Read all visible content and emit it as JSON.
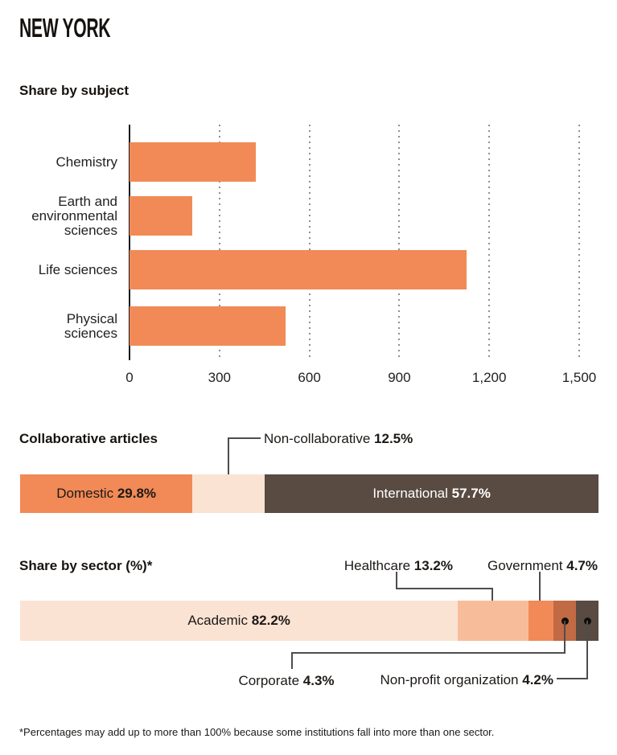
{
  "page": {
    "title": "NEW YORK",
    "footnote": "*Percentages may add up to more than 100% because some institutions fall into more than one sector."
  },
  "colors": {
    "orange": "#F18A56",
    "light_peach": "#FBE3D4",
    "dark_brown": "#594A42",
    "salmon": "#F7BD9B",
    "rust": "#C16A44",
    "callout_line": "#4d4d4d",
    "gridline": "#8f8f8f"
  },
  "chart_data": [
    {
      "type": "bar",
      "title": "Share by subject",
      "orientation": "horizontal",
      "categories": [
        "Chemistry",
        "Earth and environmental sciences",
        "Life sciences",
        "Physical sciences"
      ],
      "values": [
        420,
        210,
        1125,
        520
      ],
      "xlim": [
        0,
        1500
      ],
      "xticks": [
        0,
        300,
        600,
        900,
        1200,
        1500
      ],
      "xtick_labels": [
        "0",
        "300",
        "600",
        "900",
        "1,200",
        "1,500"
      ],
      "grid": "dotted-vertical",
      "bar_color": "#F18A56"
    },
    {
      "type": "stacked-bar",
      "title": "Collaborative articles",
      "unit": "%",
      "segments": [
        {
          "label": "Domestic",
          "value": 29.8,
          "display": "29.8%",
          "color": "#F18A56",
          "text_color": "#1c1916",
          "label_position": "inside"
        },
        {
          "label": "Non-collaborative",
          "value": 12.5,
          "display": "12.5%",
          "color": "#FBE3D4",
          "label_position": "callout-top"
        },
        {
          "label": "International",
          "value": 57.7,
          "display": "57.7%",
          "color": "#594A42",
          "text_color": "#ffffff",
          "label_position": "inside"
        }
      ]
    },
    {
      "type": "stacked-bar",
      "title": "Share by sector (%)*",
      "unit": "%",
      "segments": [
        {
          "label": "Academic",
          "value": 82.2,
          "display": "82.2%",
          "color": "#FBE3D4",
          "text_color": "#1c1916",
          "label_position": "inside"
        },
        {
          "label": "Healthcare",
          "value": 13.2,
          "display": "13.2%",
          "color": "#F7BD9B",
          "label_position": "callout-top"
        },
        {
          "label": "Government",
          "value": 4.7,
          "display": "4.7%",
          "color": "#F18A56",
          "label_position": "callout-top"
        },
        {
          "label": "Corporate",
          "value": 4.3,
          "display": "4.3%",
          "color": "#C16A44",
          "label_position": "callout-bottom"
        },
        {
          "label": "Non-profit organization",
          "value": 4.2,
          "display": "4.2%",
          "color": "#594A42",
          "label_position": "callout-bottom"
        }
      ]
    }
  ]
}
